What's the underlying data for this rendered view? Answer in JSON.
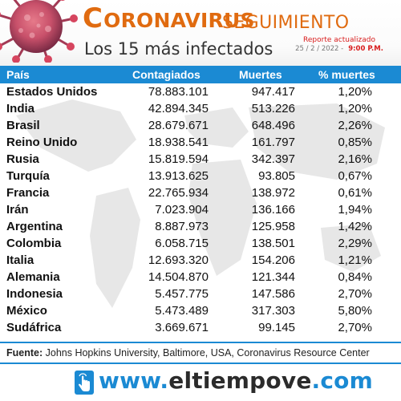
{
  "header": {
    "title_cap": "C",
    "title_rest": "ORONAVIRUS",
    "title_suffix": "SEGUIMIENTO",
    "subtitle": "Los 15 más infectados",
    "report_label": "Reporte actualizado",
    "report_date": "25 / 2 / 2022 -",
    "report_time": "9:00 P.M.",
    "accent_color": "#e06b10",
    "icon": "virus-icon"
  },
  "table": {
    "columns": [
      "País",
      "Contagiados",
      "Muertes",
      "% muertes"
    ],
    "header_color": "#1b8ad3",
    "rows": [
      {
        "country": "Estados Unidos",
        "cases": "78.883.101",
        "deaths": "947.417",
        "pct": "1,20%"
      },
      {
        "country": "India",
        "cases": "42.894.345",
        "deaths": "513.226",
        "pct": "1,20%"
      },
      {
        "country": "Brasil",
        "cases": "28.679.671",
        "deaths": "648.496",
        "pct": "2,26%"
      },
      {
        "country": "Reino Unido",
        "cases": "18.938.541",
        "deaths": "161.797",
        "pct": "0,85%"
      },
      {
        "country": "Rusia",
        "cases": "15.819.594",
        "deaths": "342.397",
        "pct": "2,16%"
      },
      {
        "country": "Turquía",
        "cases": "13.913.625",
        "deaths": "93.805",
        "pct": "0,67%"
      },
      {
        "country": "Francia",
        "cases": "22.765.934",
        "deaths": "138.972",
        "pct": "0,61%"
      },
      {
        "country": "Irán",
        "cases": "7.023.904",
        "deaths": "136.166",
        "pct": "1,94%"
      },
      {
        "country": "Argentina",
        "cases": "8.887.973",
        "deaths": "125.958",
        "pct": "1,42%"
      },
      {
        "country": "Colombia",
        "cases": "6.058.715",
        "deaths": "138.501",
        "pct": "2,29%"
      },
      {
        "country": "Italia",
        "cases": "12.693.320",
        "deaths": "154.206",
        "pct": "1,21%"
      },
      {
        "country": "Alemania",
        "cases": "14.504.870",
        "deaths": "121.344",
        "pct": "0,84%"
      },
      {
        "country": "Indonesia",
        "cases": "5.457.775",
        "deaths": "147.586",
        "pct": "2,70%"
      },
      {
        "country": "México",
        "cases": "5.473.489",
        "deaths": "317.303",
        "pct": "5,80%"
      },
      {
        "country": "Sudáfrica",
        "cases": "3.669.671",
        "deaths": "99.145",
        "pct": "2,70%"
      }
    ]
  },
  "source": {
    "label": "Fuente:",
    "text": "Johns Hopkins University, Baltimore, USA, Coronavirus Resource Center"
  },
  "footer": {
    "url_prefix": "www.",
    "url_name": "eltiempove",
    "url_suffix": ".com",
    "icon": "touch-hand-icon"
  }
}
